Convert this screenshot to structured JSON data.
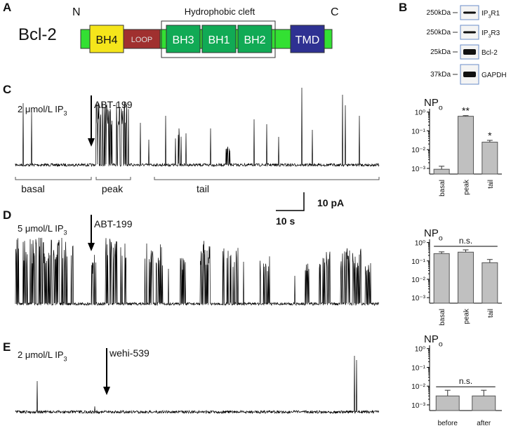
{
  "figure": {
    "panels": [
      "A",
      "B",
      "C",
      "D",
      "E"
    ],
    "diagram": {
      "protein": "Bcl-2",
      "n_term": "N",
      "c_term": "C",
      "cleft": "Hydrophobic cleft",
      "domains": [
        "BH4",
        "LOOP",
        "BH3",
        "BH1",
        "BH2",
        "TMD"
      ]
    },
    "blot": [
      {
        "size": "250kDa",
        "label": {
          "text": "IP",
          "sub": "3",
          "rest": "R1"
        }
      },
      {
        "size": "250kDa",
        "label": {
          "text": "IP",
          "sub": "3",
          "rest": "R3"
        }
      },
      {
        "size": "25kDa",
        "label": {
          "text": "Bcl-2"
        }
      },
      {
        "size": "37kDa",
        "label": {
          "text": "GAPDH"
        }
      }
    ],
    "traces": [
      {
        "condition": {
          "text": "2 μmol/L  IP",
          "sub": "3"
        },
        "drug": "ABT-199",
        "segments": [
          "basal",
          "peak",
          "tail"
        ],
        "scale_current": "10 pA",
        "scale_time": "10 s"
      },
      {
        "condition": {
          "text": "5 μmol/L  IP",
          "sub": "3"
        },
        "drug": "ABT-199"
      },
      {
        "condition": {
          "text": "2 μmol/L  IP",
          "sub": "3"
        },
        "drug": "wehi-539"
      }
    ]
  },
  "chart_data": [
    {
      "type": "bar",
      "ylabel": {
        "text": "NP",
        "sub": "o"
      },
      "log_scale": true,
      "color": "#c0c0c0",
      "categories": [
        "basal",
        "peak",
        "tail"
      ],
      "values": [
        0.0009,
        0.6,
        0.025
      ],
      "errors": [
        0.0004,
        0.05,
        0.006
      ],
      "annotations": [
        {
          "x": "peak",
          "text": "**"
        },
        {
          "x": "tail",
          "text": "*"
        }
      ],
      "ylim": [
        0.0005,
        1.5
      ],
      "yticks": [
        {
          "value": 1,
          "label": "10⁰"
        },
        {
          "value": 0.1,
          "label": "10⁻¹"
        },
        {
          "value": 0.01,
          "label": "10⁻²"
        },
        {
          "value": 0.001,
          "label": "10⁻³"
        }
      ]
    },
    {
      "type": "bar",
      "ylabel": {
        "text": "NP",
        "sub": "o"
      },
      "log_scale": true,
      "color": "#c0c0c0",
      "categories": [
        "basal",
        "peak",
        "tail"
      ],
      "values": [
        0.25,
        0.3,
        0.08
      ],
      "errors": [
        0.06,
        0.1,
        0.04
      ],
      "significance": {
        "from": "basal",
        "to": "tail",
        "text": "n.s."
      },
      "ylim": [
        0.0005,
        1.5
      ],
      "yticks": [
        {
          "value": 1,
          "label": "10⁰"
        },
        {
          "value": 0.1,
          "label": "10⁻¹"
        },
        {
          "value": 0.01,
          "label": "10⁻²"
        },
        {
          "value": 0.001,
          "label": "10⁻³"
        }
      ]
    },
    {
      "type": "bar",
      "ylabel": {
        "text": "NP",
        "sub": "o"
      },
      "log_scale": true,
      "color": "#c0c0c0",
      "categories": [
        "before",
        "after"
      ],
      "values": [
        0.003,
        0.003
      ],
      "errors": [
        0.003,
        0.003
      ],
      "significance": {
        "from": "before",
        "to": "after",
        "text": "n.s."
      },
      "ylim": [
        0.0005,
        1.5
      ],
      "yticks": [
        {
          "value": 1,
          "label": "10⁰"
        },
        {
          "value": 0.1,
          "label": "10⁻¹"
        },
        {
          "value": 0.01,
          "label": "10⁻²"
        },
        {
          "value": 0.001,
          "label": "10⁻³"
        }
      ]
    }
  ]
}
